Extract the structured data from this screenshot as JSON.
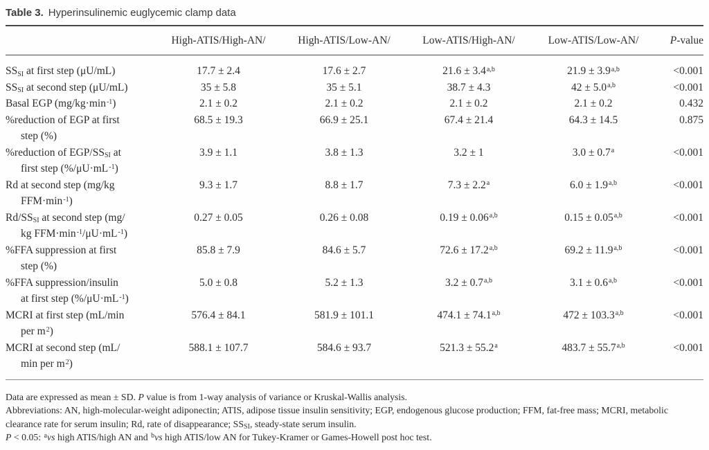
{
  "title": {
    "label": "Table 3.",
    "text": "Hyperinsulinemic euglycemic clamp data"
  },
  "table": {
    "columns": [
      "High-ATIS/High-AN/",
      "High-ATIS/Low-AN/",
      "Low-ATIS/High-AN/",
      "Low-ATIS/Low-AN/",
      "*P*-value"
    ],
    "rows": [
      {
        "label": [
          "SS~SI~ at first step (μU/mL)"
        ],
        "values": [
          "17.7 ± 2.4",
          "17.6 ± 2.7",
          "21.6 ± 3.4^a,b^",
          "21.9 ± 3.9^a,b^",
          "<0.001"
        ]
      },
      {
        "label": [
          "SS~SI~ at second step (μU/mL)"
        ],
        "values": [
          "35 ± 5.8",
          "35 ± 5.1",
          "38.7 ± 4.3",
          "42 ± 5.0^a,b^",
          "<0.001"
        ]
      },
      {
        "label": [
          "Basal EGP (mg/kg·min^-1^)"
        ],
        "values": [
          "2.1 ± 0.2",
          "2.1 ± 0.2",
          "2.1 ± 0.2",
          "2.1 ± 0.2",
          "0.432"
        ]
      },
      {
        "label": [
          "%reduction of EGP at first",
          "step (%)"
        ],
        "values": [
          "68.5 ± 19.3",
          "66.9 ± 25.1",
          "67.4 ± 21.4",
          "64.3 ± 14.5",
          "0.875"
        ]
      },
      {
        "label": [
          "%reduction of EGP/SS~SI~ at",
          "first step (%/μU·mL^-1^)"
        ],
        "values": [
          "3.9 ± 1.1",
          "3.8 ± 1.3",
          "3.2 ± 1",
          "3.0 ± 0.7^a^",
          "<0.001"
        ]
      },
      {
        "label": [
          "Rd at second step (mg/kg",
          "FFM·min^-1^)"
        ],
        "values": [
          "9.3 ± 1.7",
          "8.8 ± 1.7",
          "7.3 ± 2.2^a^",
          "6.0 ± 1.9^a,b^",
          "<0.001"
        ]
      },
      {
        "label": [
          "Rd/SS~SI~ at second step (mg/",
          "kg FFM·min^-1^/μU·mL^-1^)"
        ],
        "values": [
          "0.27 ± 0.05",
          "0.26 ± 0.08",
          "0.19 ± 0.06^a,b^",
          "0.15 ± 0.05^a,b^",
          "<0.001"
        ]
      },
      {
        "label": [
          "%FFA suppression at first",
          "step (%)"
        ],
        "values": [
          "85.8 ± 7.9",
          "84.6 ± 5.7",
          "72.6 ± 17.2^a,b^",
          "69.2 ± 11.9^a,b^",
          "<0.001"
        ]
      },
      {
        "label": [
          "%FFA suppression/insulin",
          "at first step (%/μU·mL^-1^)"
        ],
        "values": [
          "5.0 ± 0.8",
          "5.2 ± 1.3",
          "3.2 ± 0.7^a,b^",
          "3.1 ± 0.6^a,b^",
          "<0.001"
        ]
      },
      {
        "label": [
          "MCRI at first step (mL/min",
          "per m^2^)"
        ],
        "values": [
          "576.4 ± 84.1",
          "581.9 ± 101.1",
          "474.1 ± 74.1^a,b^",
          "472 ± 103.3^a,b^",
          "<0.001"
        ]
      },
      {
        "label": [
          "MCRI at second step (mL/",
          "min per m^2^)"
        ],
        "values": [
          "588.1 ± 107.7",
          "584.6 ± 93.7",
          "521.3 ± 55.2^a^",
          "483.7 ± 55.7^a,b^",
          "<0.001"
        ]
      }
    ]
  },
  "footnotes": [
    "Data are expressed as mean ± SD. *P* value is from 1-way analysis of variance or Kruskal-Wallis analysis.",
    "Abbreviations: AN, high-molecular-weight adiponectin; ATIS, adipose tissue insulin sensitivity; EGP, endogenous glucose production; FFM, fat-free mass; MCRI, metabolic clearance rate for serum insulin; Rd, rate of disappearance; SS~SI~, steady-state serum insulin.",
    "*P* < 0.05: ^a^*vs* high ATIS/high AN and ^b^*vs* high ATIS/low AN for Tukey-Kramer or Games-Howell post hoc test."
  ]
}
